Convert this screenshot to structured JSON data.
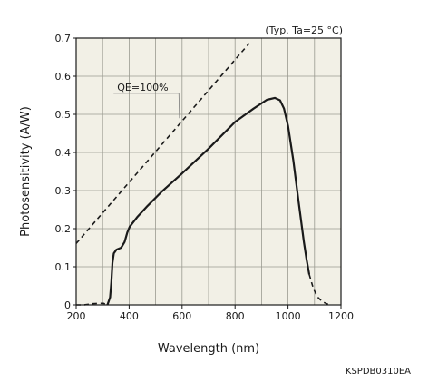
{
  "chart_data": {
    "type": "line",
    "condition_note": "(Typ. Ta=25 °C)",
    "xlabel": "Wavelength (nm)",
    "ylabel": "Photosensitivity (A/W)",
    "xlim": [
      200,
      1200
    ],
    "ylim": [
      0,
      0.7
    ],
    "x_ticks": [
      200,
      400,
      600,
      800,
      1000,
      1200
    ],
    "x_tick_labels": [
      "200",
      "400",
      "600",
      "800",
      "1000",
      "1200"
    ],
    "x_minor_step": 100,
    "y_ticks": [
      0,
      0.1,
      0.2,
      0.3,
      0.4,
      0.5,
      0.6,
      0.7
    ],
    "y_tick_labels": [
      "0",
      "0.1",
      "0.2",
      "0.3",
      "0.4",
      "0.5",
      "0.6",
      "0.7"
    ],
    "grid": true,
    "plot_background": "#f2f0e6",
    "series": [
      {
        "style": "solid",
        "points": [
          [
            318,
            0.0
          ],
          [
            328,
            0.02
          ],
          [
            333,
            0.06
          ],
          [
            337,
            0.11
          ],
          [
            342,
            0.135
          ],
          [
            352,
            0.145
          ],
          [
            370,
            0.15
          ],
          [
            383,
            0.165
          ],
          [
            393,
            0.19
          ],
          [
            402,
            0.205
          ],
          [
            430,
            0.23
          ],
          [
            470,
            0.26
          ],
          [
            520,
            0.295
          ],
          [
            600,
            0.345
          ],
          [
            700,
            0.41
          ],
          [
            800,
            0.48
          ],
          [
            870,
            0.515
          ],
          [
            920,
            0.538
          ],
          [
            950,
            0.543
          ],
          [
            970,
            0.537
          ],
          [
            985,
            0.515
          ],
          [
            1000,
            0.47
          ],
          [
            1020,
            0.38
          ],
          [
            1040,
            0.27
          ],
          [
            1060,
            0.165
          ],
          [
            1070,
            0.12
          ],
          [
            1080,
            0.08
          ]
        ]
      },
      {
        "style": "dashed",
        "points": [
          [
            1080,
            0.08
          ],
          [
            1095,
            0.045
          ],
          [
            1110,
            0.022
          ],
          [
            1130,
            0.008
          ],
          [
            1150,
            0.002
          ],
          [
            1160,
            0.0
          ]
        ]
      },
      {
        "style": "dashed",
        "points": [
          [
            200,
            0.0
          ],
          [
            230,
            0.0
          ],
          [
            260,
            0.003
          ],
          [
            290,
            0.004
          ],
          [
            303,
            0.004
          ],
          [
            318,
            0.0
          ]
        ]
      },
      {
        "name": "QE=100%",
        "style": "dashed",
        "points": [
          [
            200,
            0.161
          ],
          [
            200,
            0.161
          ],
          [
            853,
            0.686
          ]
        ]
      }
    ],
    "annotations": [
      {
        "text": "QE=100%",
        "x": 355,
        "y": 0.555,
        "leader_to": [
          590,
          0.49
        ]
      }
    ]
  },
  "doc_code": "KSPDB0310EA"
}
